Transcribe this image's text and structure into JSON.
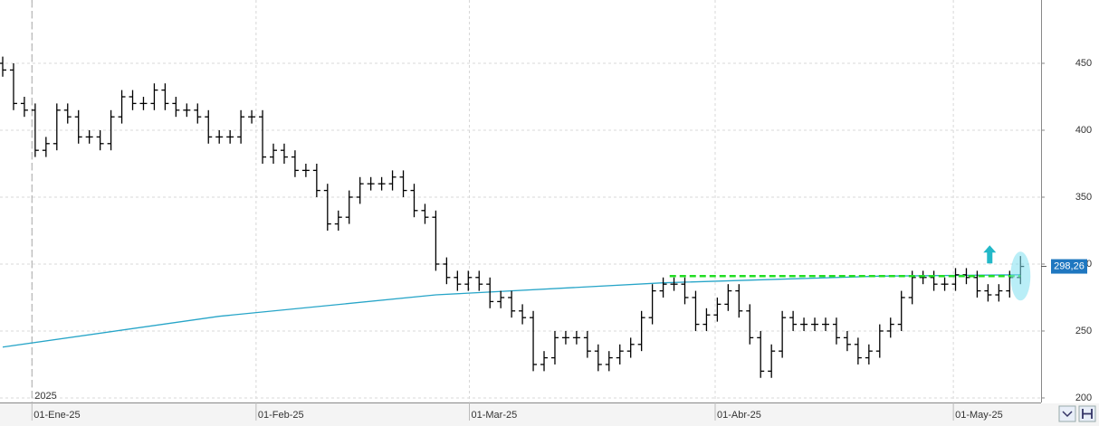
{
  "chart_data": {
    "type": "ohlc",
    "year_label": "2025",
    "color": "#000000",
    "open": [
      450,
      445,
      420,
      415,
      385,
      390,
      415,
      410,
      395,
      395,
      390,
      410,
      425,
      420,
      420,
      430,
      420,
      415,
      415,
      410,
      395,
      395,
      395,
      410,
      410,
      380,
      385,
      380,
      370,
      370,
      355,
      330,
      335,
      350,
      360,
      360,
      360,
      365,
      355,
      340,
      335,
      300,
      290,
      285,
      290,
      285,
      272,
      275,
      265,
      260,
      225,
      230,
      245,
      245,
      245,
      235,
      225,
      230,
      235,
      240,
      260,
      280,
      285,
      285,
      275,
      255,
      262,
      270,
      280,
      265,
      245,
      220,
      235,
      260,
      255,
      255,
      255,
      255,
      245,
      240,
      230,
      235,
      250,
      255,
      275,
      290,
      290,
      285,
      285,
      292,
      290,
      280,
      277,
      280,
      290
    ],
    "high": [
      455,
      450,
      425,
      420,
      395,
      420,
      420,
      415,
      400,
      400,
      415,
      430,
      430,
      425,
      435,
      435,
      425,
      420,
      420,
      415,
      400,
      400,
      415,
      415,
      415,
      390,
      390,
      385,
      375,
      375,
      360,
      340,
      355,
      365,
      365,
      365,
      370,
      370,
      360,
      345,
      340,
      305,
      295,
      295,
      295,
      290,
      280,
      280,
      270,
      265,
      235,
      250,
      250,
      250,
      250,
      240,
      235,
      240,
      245,
      265,
      285,
      290,
      290,
      290,
      280,
      267,
      275,
      285,
      285,
      270,
      250,
      240,
      265,
      265,
      260,
      260,
      260,
      260,
      250,
      245,
      240,
      255,
      260,
      280,
      295,
      295,
      295,
      290,
      297,
      297,
      295,
      285,
      285,
      295,
      306
    ],
    "low": [
      440,
      415,
      410,
      380,
      380,
      385,
      405,
      390,
      390,
      385,
      385,
      405,
      415,
      415,
      415,
      415,
      410,
      410,
      405,
      390,
      390,
      390,
      390,
      405,
      375,
      375,
      375,
      365,
      365,
      350,
      325,
      325,
      330,
      345,
      355,
      355,
      355,
      350,
      335,
      330,
      295,
      285,
      280,
      280,
      280,
      267,
      267,
      260,
      255,
      220,
      220,
      225,
      240,
      240,
      230,
      220,
      220,
      225,
      230,
      235,
      255,
      275,
      280,
      270,
      250,
      250,
      257,
      265,
      260,
      240,
      215,
      215,
      230,
      250,
      250,
      250,
      250,
      240,
      235,
      225,
      225,
      230,
      245,
      250,
      270,
      285,
      280,
      280,
      280,
      285,
      275,
      272,
      272,
      275,
      285
    ],
    "close": [
      445,
      420,
      415,
      385,
      390,
      415,
      410,
      395,
      395,
      390,
      410,
      425,
      420,
      420,
      430,
      420,
      415,
      415,
      410,
      395,
      395,
      395,
      410,
      410,
      380,
      385,
      380,
      370,
      370,
      355,
      330,
      335,
      350,
      360,
      360,
      360,
      365,
      355,
      340,
      335,
      300,
      290,
      285,
      290,
      285,
      272,
      275,
      265,
      260,
      225,
      230,
      245,
      245,
      245,
      235,
      225,
      230,
      235,
      240,
      260,
      280,
      285,
      285,
      275,
      255,
      262,
      270,
      280,
      265,
      245,
      220,
      235,
      260,
      255,
      255,
      255,
      255,
      245,
      240,
      230,
      235,
      250,
      255,
      275,
      290,
      290,
      285,
      285,
      292,
      290,
      280,
      277,
      280,
      290,
      298.26
    ],
    "last_price": {
      "value": 298.26,
      "label": "298,26"
    },
    "moving_average": {
      "color": "#27a5c8",
      "x": [
        0,
        20,
        40,
        61,
        81,
        94
      ],
      "values": [
        238,
        261,
        277,
        286,
        291,
        292
      ]
    },
    "resistance": {
      "color": "#22dd22",
      "value": 291,
      "x": [
        61.6,
        94
      ]
    },
    "xlim": [
      -0.25,
      95.9
    ],
    "ylim": [
      196.6,
      497.3
    ],
    "xticks": [
      {
        "value": 2.7,
        "label": "01-Ene-25"
      },
      {
        "value": 23.4,
        "label": "01-Feb-25"
      },
      {
        "value": 43.1,
        "label": "01-Mar-25"
      },
      {
        "value": 65.8,
        "label": "01-Abr-25"
      },
      {
        "value": 87.8,
        "label": "01-May-25"
      }
    ],
    "yticks": [
      200,
      250,
      300,
      350,
      400,
      450
    ],
    "grid": true
  }
}
